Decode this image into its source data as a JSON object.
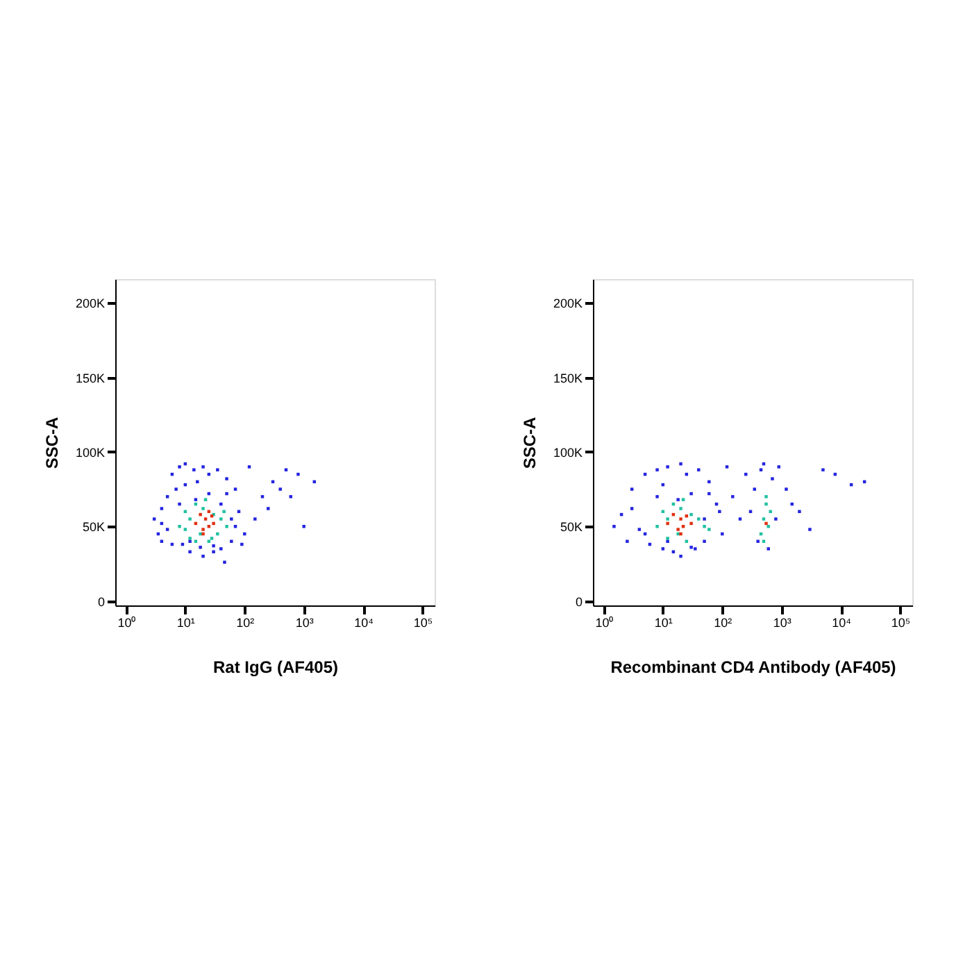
{
  "chart_data": [
    {
      "type": "scatter",
      "xlabel": "Rat IgG (AF405)",
      "ylabel": "SSC-A",
      "log": "x",
      "grid": false,
      "legend": false,
      "marker": "square",
      "xlim": [
        0.66,
        160000
      ],
      "ylim": [
        -3000,
        216000
      ],
      "xticks": [
        {
          "value": 1,
          "label": "10⁰"
        },
        {
          "value": 10,
          "label": "10¹"
        },
        {
          "value": 100,
          "label": "10²"
        },
        {
          "value": 1000,
          "label": "10³"
        },
        {
          "value": 10000,
          "label": "10⁴"
        },
        {
          "value": 100000,
          "label": "10⁵"
        }
      ],
      "yticks": [
        0,
        {
          "value": 50000,
          "label": "50K"
        },
        {
          "value": 100000,
          "label": "100K"
        },
        {
          "value": 150000,
          "label": "150K"
        },
        {
          "value": 200000,
          "label": "200K"
        }
      ],
      "series": [
        {
          "color": "#2424e0",
          "x": [
            3,
            3.5,
            4,
            4,
            5,
            5,
            6,
            7,
            8,
            9,
            10,
            12,
            14,
            16,
            18,
            20,
            25,
            30,
            35,
            40,
            50,
            60,
            70,
            80,
            100,
            120,
            150,
            200,
            250,
            300,
            400,
            500,
            600,
            800,
            1000,
            1500,
            4,
            6,
            8,
            12,
            20,
            30,
            50,
            70,
            10,
            15,
            25,
            40,
            60,
            90,
            46
          ],
          "values": [
            55000,
            45000,
            62000,
            40000,
            70000,
            48000,
            85000,
            75000,
            90000,
            38000,
            92000,
            33000,
            88000,
            80000,
            36000,
            90000,
            85000,
            37000,
            88000,
            35000,
            82000,
            40000,
            75000,
            60000,
            45000,
            90000,
            55000,
            70000,
            62000,
            80000,
            75000,
            88000,
            70000,
            85000,
            50000,
            80000,
            52000,
            38000,
            65000,
            40000,
            30000,
            33000,
            72000,
            50000,
            78000,
            68000,
            72000,
            65000,
            55000,
            38000,
            26000
          ]
        },
        {
          "color": "#20c0a0",
          "x": [
            8,
            10,
            12,
            15,
            18,
            20,
            25,
            30,
            35,
            40,
            50,
            12,
            15,
            22,
            28,
            10,
            45
          ],
          "values": [
            50000,
            60000,
            42000,
            65000,
            45000,
            62000,
            40000,
            58000,
            45000,
            55000,
            50000,
            55000,
            40000,
            68000,
            42000,
            48000,
            60000
          ]
        },
        {
          "color": "#e03010",
          "x": [
            15,
            18,
            20,
            22,
            25,
            28,
            30,
            20,
            25
          ],
          "values": [
            52000,
            58000,
            48000,
            55000,
            50000,
            57000,
            52000,
            45000,
            60000
          ]
        }
      ]
    },
    {
      "type": "scatter",
      "xlabel": "Recombinant CD4 Antibody (AF405)",
      "ylabel": "SSC-A",
      "log": "x",
      "grid": false,
      "legend": false,
      "marker": "square",
      "xlim": [
        0.66,
        160000
      ],
      "ylim": [
        -3000,
        216000
      ],
      "xticks": [
        {
          "value": 1,
          "label": "10⁰"
        },
        {
          "value": 10,
          "label": "10¹"
        },
        {
          "value": 100,
          "label": "10²"
        },
        {
          "value": 1000,
          "label": "10³"
        },
        {
          "value": 10000,
          "label": "10⁴"
        },
        {
          "value": 100000,
          "label": "10⁵"
        }
      ],
      "yticks": [
        0,
        {
          "value": 50000,
          "label": "50K"
        },
        {
          "value": 100000,
          "label": "100K"
        },
        {
          "value": 150000,
          "label": "150K"
        },
        {
          "value": 200000,
          "label": "200K"
        }
      ],
      "series": [
        {
          "color": "#2424e0",
          "x": [
            1.5,
            2,
            2.5,
            3,
            4,
            5,
            6,
            8,
            10,
            12,
            15,
            20,
            25,
            30,
            40,
            50,
            60,
            80,
            100,
            120,
            150,
            200,
            250,
            300,
            350,
            400,
            450,
            500,
            600,
            700,
            800,
            900,
            1200,
            1500,
            2000,
            3000,
            5000,
            8000,
            15000,
            25000,
            3,
            5,
            8,
            12,
            20,
            35,
            60,
            90,
            10,
            18,
            30,
            50
          ],
          "values": [
            50000,
            58000,
            40000,
            75000,
            48000,
            85000,
            38000,
            88000,
            35000,
            90000,
            33000,
            92000,
            85000,
            36000,
            88000,
            40000,
            80000,
            65000,
            45000,
            90000,
            70000,
            55000,
            85000,
            60000,
            75000,
            40000,
            88000,
            92000,
            35000,
            82000,
            55000,
            90000,
            75000,
            65000,
            60000,
            48000,
            88000,
            85000,
            78000,
            80000,
            62000,
            45000,
            70000,
            40000,
            30000,
            35000,
            72000,
            60000,
            78000,
            68000,
            72000,
            55000
          ]
        },
        {
          "color": "#20c0a0",
          "x": [
            8,
            10,
            12,
            15,
            18,
            20,
            25,
            30,
            40,
            50,
            60,
            12,
            22,
            450,
            500,
            550,
            600,
            650,
            500,
            550
          ],
          "values": [
            50000,
            60000,
            42000,
            65000,
            45000,
            62000,
            40000,
            58000,
            55000,
            50000,
            48000,
            55000,
            68000,
            45000,
            55000,
            65000,
            50000,
            60000,
            40000,
            70000
          ]
        },
        {
          "color": "#e03010",
          "x": [
            12,
            15,
            18,
            20,
            22,
            25,
            30,
            20,
            550
          ],
          "values": [
            52000,
            58000,
            48000,
            55000,
            50000,
            57000,
            52000,
            45000,
            52000
          ]
        }
      ]
    }
  ]
}
